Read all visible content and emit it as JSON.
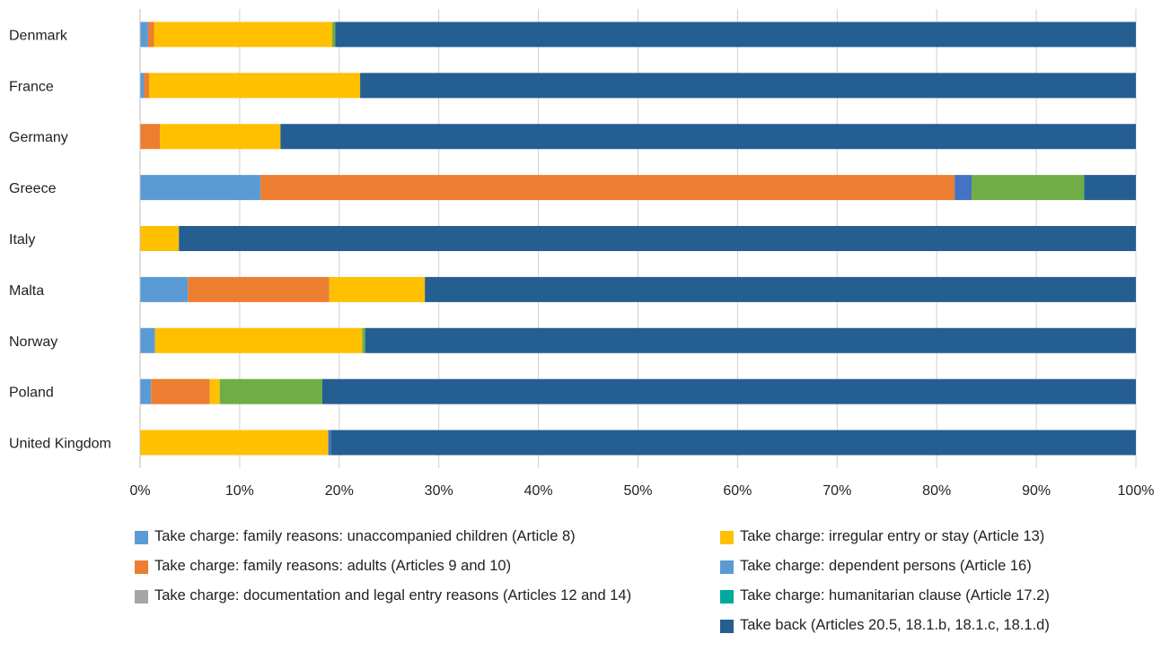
{
  "chart_data": {
    "type": "bar",
    "orientation": "horizontal",
    "stacked": true,
    "categories": [
      "Denmark",
      "France",
      "Germany",
      "Greece",
      "Italy",
      "Malta",
      "Norway",
      "Poland",
      "United Kingdom"
    ],
    "x_ticks": [
      "0%",
      "10%",
      "20%",
      "30%",
      "40%",
      "50%",
      "60%",
      "70%",
      "80%",
      "90%",
      "100%"
    ],
    "xlim": [
      0,
      100
    ],
    "grid": "vertical",
    "legend_position": "bottom",
    "series": [
      {
        "name": "Take charge: family reasons: unaccompanied children (Article 8)",
        "color": "#5b9bd5",
        "values": [
          0.8,
          0.4,
          0,
          12.1,
          0,
          4.8,
          1.5,
          1.1,
          0
        ]
      },
      {
        "name": "Take charge: family reasons: adults (Articles 9 and 10)",
        "color": "#ed7d31",
        "values": [
          0.6,
          0.5,
          2.0,
          69.7,
          0,
          14.2,
          0,
          5.9,
          0
        ]
      },
      {
        "name": "Take charge: documentation and legal entry reasons (Articles 12 and 14)",
        "color": "#a5a5a5",
        "values": [
          0,
          0,
          0,
          0,
          0,
          0,
          0,
          0,
          0
        ]
      },
      {
        "name": "Take charge: irregular entry or stay (Article 13)",
        "color": "#ffc000",
        "values": [
          17.9,
          21.2,
          12.1,
          0,
          3.9,
          9.6,
          20.8,
          1.0,
          18.9
        ]
      },
      {
        "name": "Take charge: dependent persons (Article 16)",
        "color": "#4472c4",
        "values": [
          0,
          0,
          0,
          1.7,
          0,
          0,
          0,
          0,
          0.3
        ]
      },
      {
        "name": "Take charge: humanitarian clause (Article 17.2)",
        "color": "#70ad47",
        "values": [
          0.3,
          0,
          0,
          11.3,
          0,
          0,
          0.3,
          10.3,
          0
        ]
      },
      {
        "name": "Take back (Articles 20.5, 18.1.b, 18.1.c, 18.1.d)",
        "color": "#255e91",
        "values": [
          80.4,
          77.9,
          85.9,
          5.2,
          96.1,
          71.4,
          77.4,
          81.7,
          80.8
        ]
      }
    ]
  },
  "legend": {
    "left": [
      {
        "label": "Take charge: family reasons: unaccompanied children (Article 8)",
        "color": "#5b9bd5"
      },
      {
        "label": "Take charge: family reasons: adults (Articles 9 and 10)",
        "color": "#ed7d31"
      },
      {
        "label": "Take charge: documentation and legal entry reasons (Articles 12 and 14)",
        "color": "#a5a5a5"
      }
    ],
    "right": [
      {
        "label": "Take charge: irregular entry or stay (Article 13)",
        "color": "#ffc000"
      },
      {
        "label": "Take charge: dependent persons (Article 16)",
        "color": "#5b9bd5"
      },
      {
        "label": "Take charge: humanitarian clause (Article 17.2)",
        "color": "#00a99d"
      },
      {
        "label": "Take back (Articles 20.5, 18.1.b, 18.1.c, 18.1.d)",
        "color": "#255e91"
      }
    ]
  }
}
